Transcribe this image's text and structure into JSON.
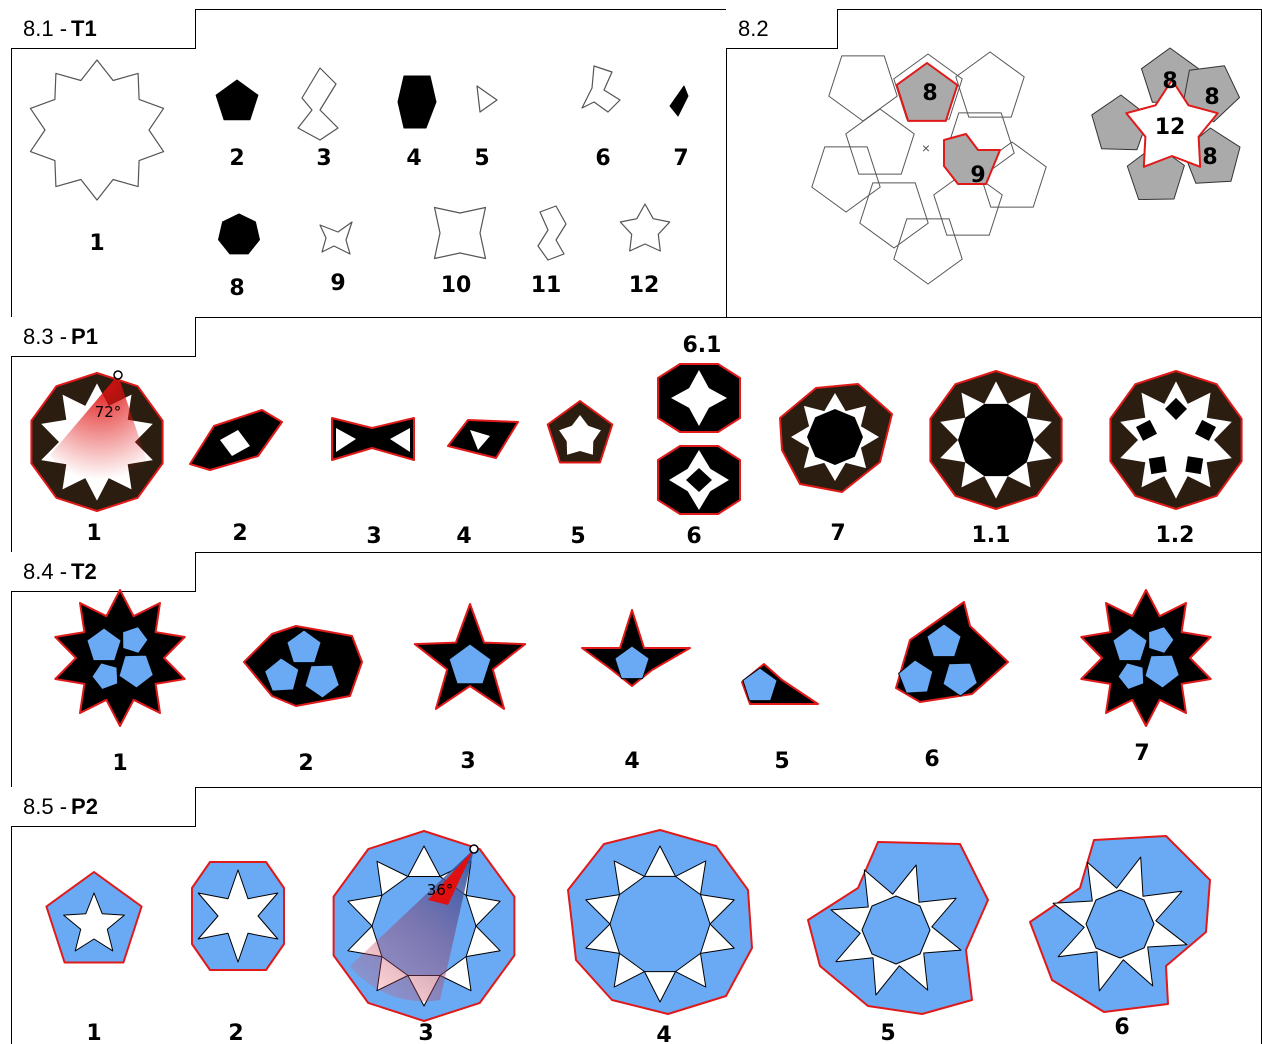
{
  "sections": [
    {
      "id": "8.1",
      "code": "T1",
      "labels": [
        "1",
        "2",
        "3",
        "4",
        "5",
        "6",
        "7",
        "8",
        "9",
        "10",
        "11",
        "12"
      ]
    },
    {
      "id": "8.2",
      "code": "",
      "labels": [
        "8",
        "9",
        "8",
        "8",
        "12",
        "8"
      ]
    },
    {
      "id": "8.3",
      "code": "P1",
      "labels": [
        "1",
        "2",
        "3",
        "4",
        "5",
        "6.1",
        "6",
        "7",
        "1.1",
        "1.2"
      ],
      "angle": "72°"
    },
    {
      "id": "8.4",
      "code": "T2",
      "labels": [
        "1",
        "2",
        "3",
        "4",
        "5",
        "6",
        "7"
      ]
    },
    {
      "id": "8.5",
      "code": "P2",
      "labels": [
        "1",
        "2",
        "3",
        "4",
        "5",
        "6"
      ],
      "angle": "36°"
    }
  ],
  "colors": {
    "black": "#000000",
    "blue": "#6aaaf5",
    "gray": "#aaaaaa",
    "red": "#e01919",
    "brown": "#2b1d10"
  }
}
